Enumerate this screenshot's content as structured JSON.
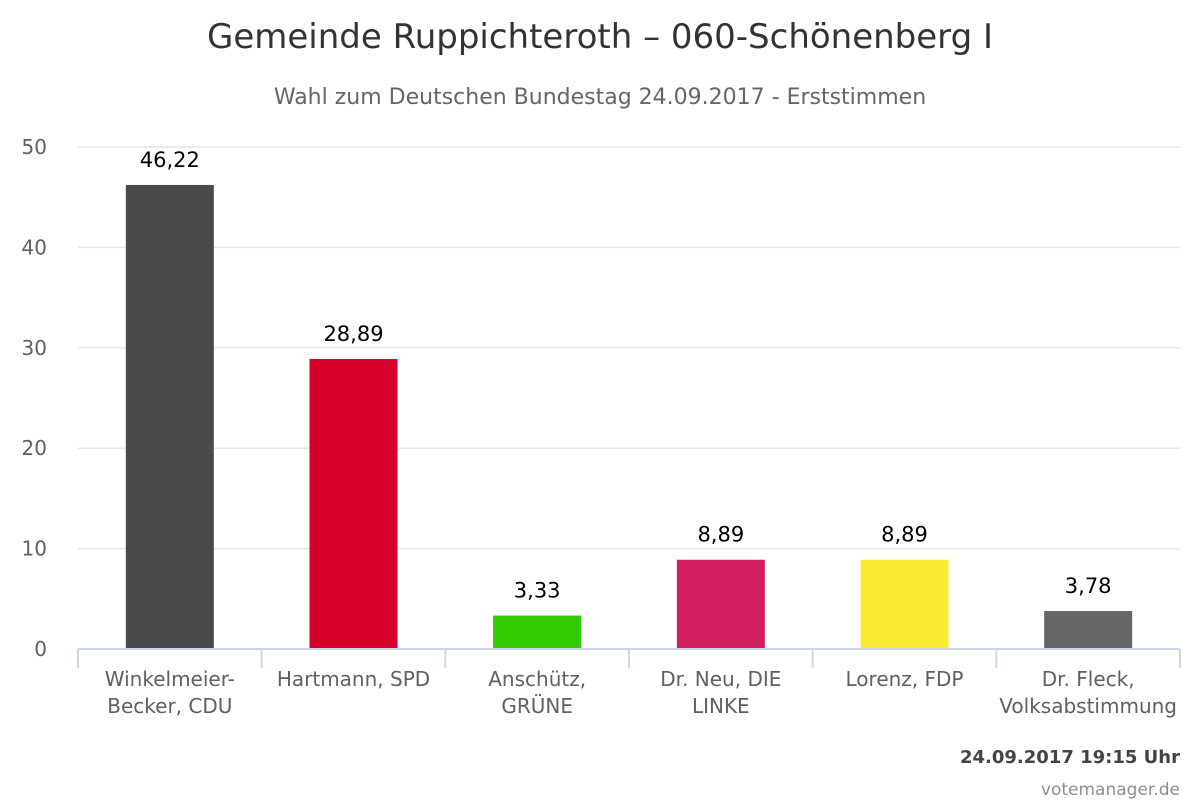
{
  "chart_data": {
    "type": "bar",
    "title": "Gemeinde Ruppichteroth – 060-Schönenberg I",
    "subtitle": "Wahl zum Deutschen Bundestag 24.09.2017 - Erststimmen",
    "categories": [
      [
        "Winkelmeier-",
        "Becker, CDU"
      ],
      [
        "Hartmann, SPD"
      ],
      [
        "Anschütz,",
        "GRÜNE"
      ],
      [
        "Dr. Neu, DIE",
        "LINKE"
      ],
      [
        "Lorenz, FDP"
      ],
      [
        "Dr. Fleck,",
        "Volksabstimmung"
      ]
    ],
    "values": [
      46.22,
      28.89,
      3.33,
      8.89,
      8.89,
      3.78
    ],
    "value_labels": [
      "46,22",
      "28,89",
      "3,33",
      "8,89",
      "8,89",
      "3,78"
    ],
    "colors": [
      "#4a4a4a",
      "#d7002a",
      "#33cc00",
      "#d21f5f",
      "#f9eb34",
      "#666666"
    ],
    "ylim": [
      0,
      50
    ],
    "yticks": [
      0,
      10,
      20,
      30,
      40,
      50
    ],
    "grid": true,
    "legend": "none"
  },
  "footer": {
    "timestamp": "24.09.2017 19:15 Uhr",
    "credit": "votemanager.de"
  }
}
